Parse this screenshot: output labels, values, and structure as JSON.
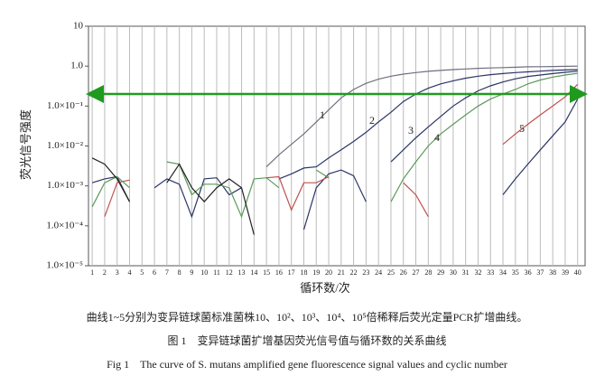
{
  "chart_data": {
    "type": "line",
    "y_label": "荧光信号强度",
    "x_label": "循环数/次",
    "log_y": true,
    "grid_x": true,
    "threshold": 0.2,
    "threshold_color": "#1f9a1f",
    "curve_labels": [
      "1",
      "2",
      "3",
      "4",
      "5"
    ],
    "xlim": [
      0.7,
      40.6
    ],
    "xticks": [
      1,
      2,
      3,
      4,
      5,
      6,
      7,
      8,
      9,
      10,
      11,
      12,
      13,
      14,
      15,
      16,
      17,
      18,
      19,
      20,
      21,
      22,
      23,
      24,
      25,
      26,
      27,
      28,
      29,
      30,
      31,
      32,
      33,
      34,
      35,
      36,
      37,
      38,
      39,
      40
    ],
    "ylim": [
      1e-05,
      10
    ],
    "yticks": [
      10,
      {
        "value": 1,
        "label": "1.0"
      },
      {
        "value": 0.1,
        "label": "1.0×10⁻¹"
      },
      {
        "value": 0.01,
        "label": "1.0×10⁻²"
      },
      {
        "value": 0.001,
        "label": "1.0×10⁻³"
      },
      {
        "value": 0.0001,
        "label": "1.0×10⁻⁴"
      },
      {
        "value": 1e-05,
        "label": "1.0×10⁻⁵"
      }
    ],
    "x": [
      1,
      2,
      3,
      4,
      5,
      6,
      7,
      8,
      9,
      10,
      11,
      12,
      13,
      14,
      15,
      16,
      17,
      18,
      19,
      20,
      21,
      22,
      23,
      24,
      25,
      26,
      27,
      28,
      29,
      30,
      31,
      32,
      33,
      34,
      35,
      36,
      37,
      38,
      39,
      40
    ],
    "series": [
      {
        "color": "#6f7080",
        "values": [
          null,
          null,
          null,
          null,
          null,
          null,
          null,
          null,
          null,
          null,
          null,
          null,
          null,
          null,
          0.003,
          0.006,
          0.011,
          0.02,
          0.04,
          0.08,
          0.16,
          0.26,
          0.37,
          0.47,
          0.56,
          0.63,
          0.69,
          0.74,
          0.78,
          0.82,
          0.85,
          0.88,
          0.9,
          0.92,
          0.94,
          0.96,
          0.97,
          0.98,
          0.99,
          1.0
        ]
      },
      {
        "color": "#2b3566",
        "values": [
          null,
          null,
          null,
          null,
          null,
          null,
          null,
          null,
          null,
          null,
          null,
          null,
          null,
          null,
          null,
          0.0015,
          0.002,
          0.0028,
          0.003,
          0.005,
          0.008,
          0.013,
          0.022,
          0.04,
          0.07,
          0.13,
          0.2,
          0.28,
          0.36,
          0.43,
          0.5,
          0.56,
          0.61,
          0.65,
          0.69,
          0.72,
          0.75,
          0.78,
          0.8,
          0.82
        ]
      },
      {
        "color": "#2b3566",
        "values": [
          null,
          null,
          null,
          null,
          null,
          null,
          null,
          null,
          null,
          null,
          null,
          null,
          null,
          null,
          null,
          null,
          null,
          null,
          null,
          null,
          null,
          null,
          null,
          null,
          0.004,
          0.008,
          0.016,
          0.03,
          0.055,
          0.1,
          0.16,
          0.24,
          0.32,
          0.4,
          0.48,
          0.55,
          0.6,
          0.65,
          0.7,
          0.75
        ]
      },
      {
        "color": "#5a9a5a",
        "values": [
          null,
          null,
          null,
          null,
          null,
          null,
          null,
          null,
          null,
          null,
          null,
          null,
          null,
          null,
          null,
          null,
          null,
          null,
          null,
          null,
          null,
          null,
          null,
          null,
          0.0004,
          0.0015,
          0.004,
          0.01,
          0.02,
          0.035,
          0.06,
          0.1,
          0.15,
          0.2,
          0.26,
          0.36,
          0.45,
          0.53,
          0.6,
          0.66
        ]
      },
      {
        "color": "#c0504d",
        "values": [
          null,
          null,
          null,
          null,
          null,
          null,
          null,
          null,
          null,
          null,
          null,
          null,
          null,
          null,
          null,
          null,
          null,
          null,
          null,
          null,
          null,
          null,
          null,
          null,
          null,
          null,
          null,
          null,
          null,
          null,
          null,
          null,
          null,
          0.011,
          0.02,
          0.035,
          0.06,
          0.1,
          0.17,
          0.35
        ]
      },
      {
        "color": "#2b3566",
        "values": [
          null,
          null,
          null,
          null,
          null,
          null,
          null,
          null,
          null,
          null,
          null,
          null,
          null,
          null,
          null,
          null,
          null,
          null,
          null,
          null,
          null,
          null,
          null,
          null,
          null,
          null,
          null,
          null,
          null,
          null,
          null,
          null,
          null,
          0.0006,
          0.0015,
          0.0035,
          0.008,
          0.018,
          0.04,
          0.15
        ]
      },
      {
        "color": "#2b3566",
        "values": [
          0.0012,
          0.0015,
          0.0017,
          0.0004,
          null,
          0.0009,
          0.0015,
          0.0011,
          0.00017,
          0.0015,
          0.0016,
          0.0006,
          0.0009,
          null,
          null,
          null,
          null,
          8e-05,
          0.0009,
          0.002,
          0.0025,
          0.0018,
          0.0004,
          null,
          null,
          null,
          null,
          null,
          null,
          null,
          null,
          null,
          null,
          null,
          null,
          null,
          null,
          null,
          null,
          null
        ]
      },
      {
        "color": "#c0504d",
        "values": [
          null,
          0.00017,
          0.0012,
          0.0014,
          null,
          null,
          null,
          null,
          null,
          null,
          null,
          null,
          null,
          null,
          0.0016,
          0.0017,
          0.00025,
          0.0012,
          0.0012,
          0.0017,
          null,
          null,
          null,
          null,
          null,
          0.0012,
          0.0006,
          0.00017,
          null,
          null,
          null,
          null,
          null,
          null,
          null,
          null,
          null,
          null,
          null,
          null
        ]
      },
      {
        "color": "#5a9a5a",
        "values": [
          0.0003,
          0.0012,
          0.0017,
          0.0009,
          null,
          null,
          0.004,
          0.0035,
          0.0006,
          0.0011,
          0.0011,
          0.0009,
          0.00017,
          0.0015,
          0.0016,
          0.0009,
          null,
          null,
          0.0025,
          0.0016,
          null,
          null,
          null,
          null,
          null,
          null,
          null,
          null,
          null,
          null,
          null,
          null,
          null,
          null,
          null,
          null,
          null,
          null,
          null,
          null
        ]
      },
      {
        "color": "#222222",
        "values": [
          0.005,
          0.0035,
          0.0015,
          0.0004,
          null,
          null,
          0.0012,
          0.0035,
          0.0009,
          0.0004,
          0.0009,
          0.0015,
          0.0009,
          6e-05,
          null,
          null,
          null,
          null,
          null,
          null,
          null,
          null,
          null,
          null,
          null,
          null,
          null,
          null,
          null,
          null,
          null,
          null,
          null,
          null,
          null,
          null,
          null,
          null,
          null,
          null
        ]
      }
    ]
  },
  "caption": {
    "note": "曲线1~5分别为变异链球菌标准菌株10、10²、10³、10⁴、10⁵倍稀释后荧光定量PCR扩增曲线。",
    "title_cn": "图 1　变异链球菌扩增基因荧光信号值与循环数的关系曲线",
    "title_en": "Fig 1　The curve of S. mutans amplified gene fluorescence signal values and cyclic number"
  }
}
